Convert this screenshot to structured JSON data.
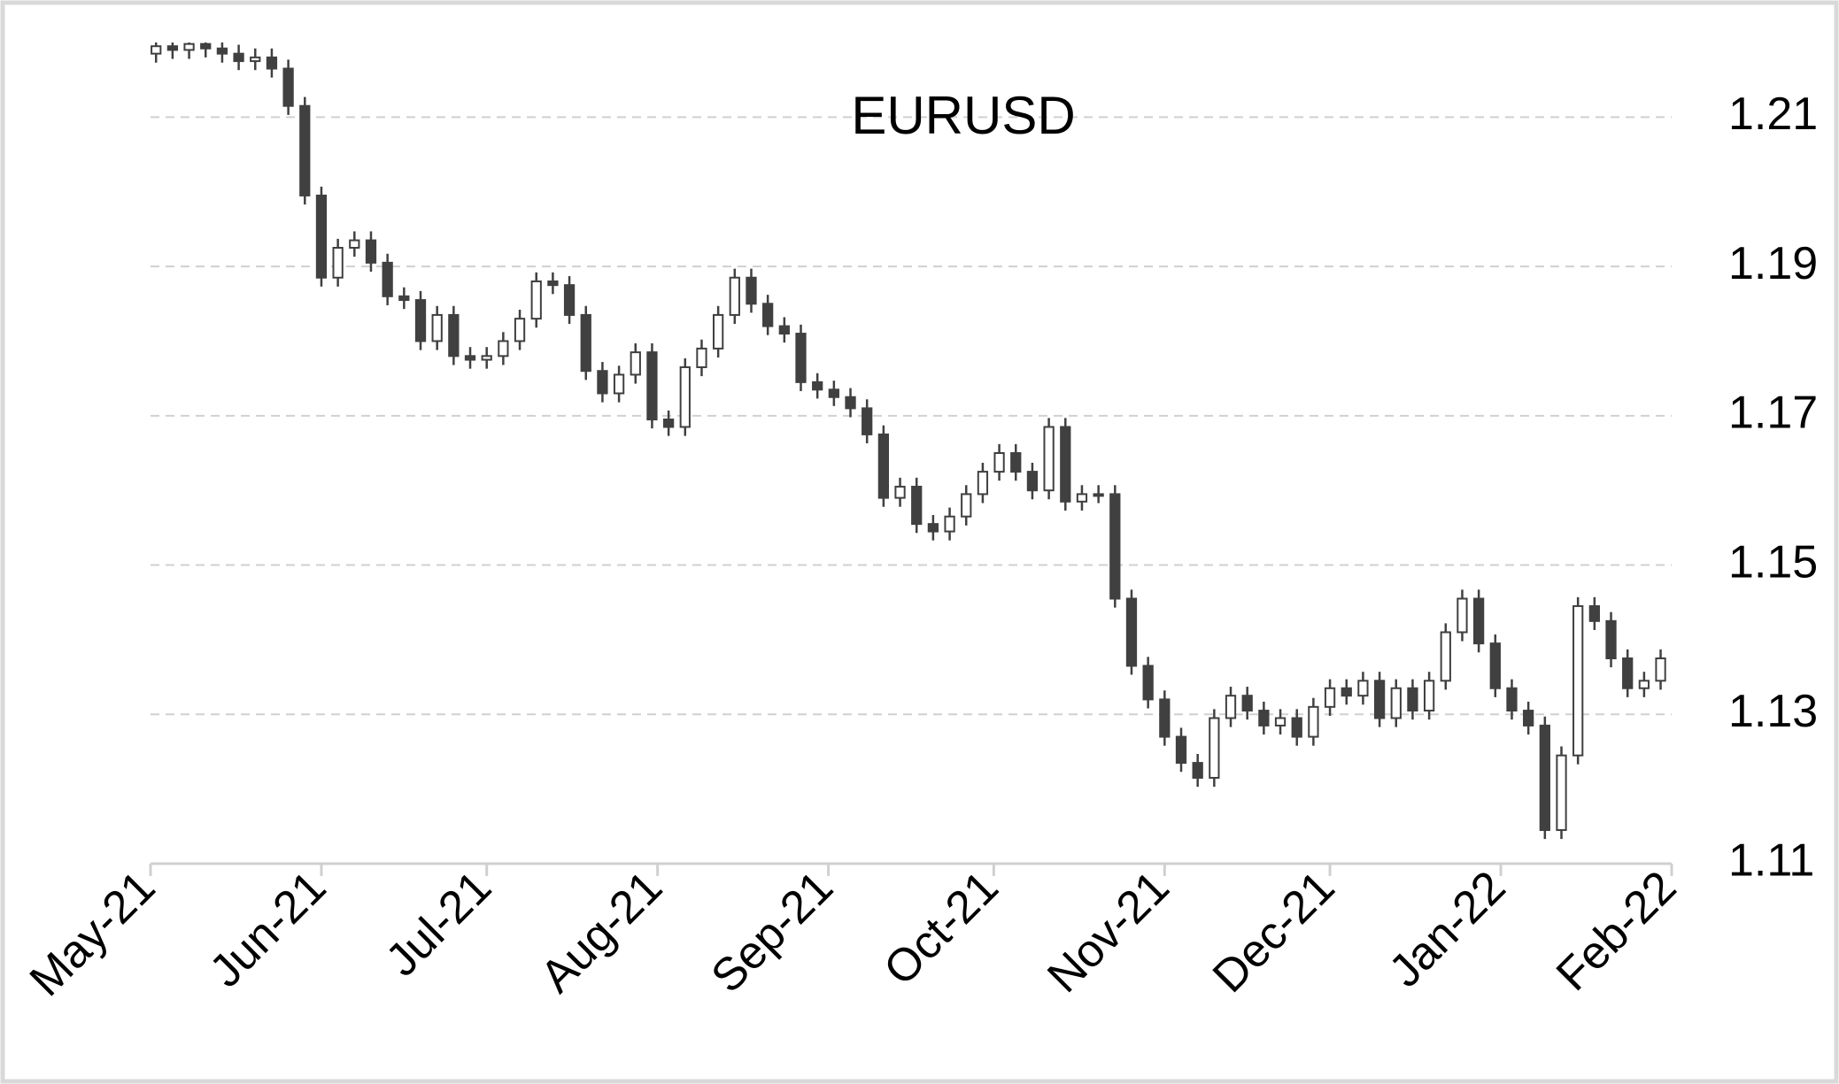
{
  "chart_data": {
    "type": "candlestick",
    "title": "EURUSD",
    "xlim": [
      0,
      276
    ],
    "xticks": [
      {
        "value": 0,
        "label": "May-21"
      },
      {
        "value": 31,
        "label": "Jun-21"
      },
      {
        "value": 61,
        "label": "Jul-21"
      },
      {
        "value": 92,
        "label": "Aug-21"
      },
      {
        "value": 123,
        "label": "Sep-21"
      },
      {
        "value": 153,
        "label": "Oct-21"
      },
      {
        "value": 184,
        "label": "Nov-21"
      },
      {
        "value": 214,
        "label": "Dec-21"
      },
      {
        "value": 245,
        "label": "Jan-22"
      },
      {
        "value": 276,
        "label": "Feb-22"
      }
    ],
    "ylim": [
      1.11,
      1.22
    ],
    "yticks": [
      1.11,
      1.13,
      1.15,
      1.17,
      1.19,
      1.21
    ],
    "grid": true,
    "up_color": "#ffffff",
    "down_color": "#404040",
    "x": [
      1,
      4,
      7,
      10,
      13,
      16,
      19,
      22,
      25,
      28,
      31,
      34,
      37,
      40,
      43,
      46,
      49,
      52,
      55,
      58,
      61,
      64,
      67,
      70,
      73,
      76,
      79,
      82,
      85,
      88,
      91,
      94,
      97,
      100,
      103,
      106,
      109,
      112,
      115,
      118,
      121,
      124,
      127,
      130,
      133,
      136,
      139,
      142,
      145,
      148,
      151,
      154,
      157,
      160,
      163,
      166,
      169,
      172,
      175,
      178,
      181,
      184,
      187,
      190,
      193,
      196,
      199,
      202,
      205,
      208,
      211,
      214,
      217,
      220,
      223,
      226,
      229,
      232,
      235,
      238,
      241,
      244,
      247,
      250,
      253,
      256,
      259,
      262,
      265,
      268,
      271,
      274
    ],
    "open": [
      1.2185,
      1.2195,
      1.219,
      1.2198,
      1.2192,
      1.2185,
      1.2175,
      1.218,
      1.2165,
      1.2115,
      1.1995,
      1.1885,
      1.1925,
      1.1935,
      1.1905,
      1.186,
      1.1855,
      1.18,
      1.1835,
      1.178,
      1.1775,
      1.178,
      1.18,
      1.183,
      1.188,
      1.1875,
      1.1835,
      1.176,
      1.173,
      1.1755,
      1.1785,
      1.1695,
      1.1685,
      1.1765,
      1.179,
      1.1835,
      1.1885,
      1.185,
      1.182,
      1.181,
      1.1745,
      1.1735,
      1.1725,
      1.171,
      1.1675,
      1.159,
      1.1605,
      1.1555,
      1.1545,
      1.1565,
      1.1595,
      1.1625,
      1.165,
      1.1625,
      1.16,
      1.1685,
      1.1585,
      1.1595,
      1.1595,
      1.1455,
      1.1365,
      1.132,
      1.127,
      1.1235,
      1.1215,
      1.1295,
      1.1325,
      1.1305,
      1.1285,
      1.1295,
      1.127,
      1.131,
      1.1335,
      1.1325,
      1.1345,
      1.1295,
      1.1335,
      1.1305,
      1.1345,
      1.141,
      1.1455,
      1.1395,
      1.1335,
      1.1305,
      1.1285,
      1.1145,
      1.1245,
      1.1445,
      1.1425,
      1.1375,
      1.1335,
      1.1345
    ],
    "high": [
      1.2207,
      1.2207,
      1.221,
      1.221,
      1.2204,
      1.2197,
      1.2192,
      1.2192,
      1.2177,
      1.2127,
      1.2007,
      1.1937,
      1.1947,
      1.1947,
      1.1917,
      1.1872,
      1.1867,
      1.1847,
      1.1847,
      1.1792,
      1.1792,
      1.1812,
      1.1842,
      1.1892,
      1.1892,
      1.1887,
      1.1847,
      1.1772,
      1.1767,
      1.1797,
      1.1797,
      1.1707,
      1.1777,
      1.1802,
      1.1847,
      1.1897,
      1.1897,
      1.1862,
      1.1832,
      1.1822,
      1.1757,
      1.1747,
      1.1737,
      1.1722,
      1.1687,
      1.1617,
      1.1617,
      1.1567,
      1.1577,
      1.1607,
      1.1637,
      1.1662,
      1.1662,
      1.1637,
      1.1697,
      1.1697,
      1.1607,
      1.1607,
      1.1607,
      1.1467,
      1.1377,
      1.1332,
      1.1282,
      1.1247,
      1.1307,
      1.1337,
      1.1337,
      1.1317,
      1.1307,
      1.1307,
      1.1322,
      1.1347,
      1.1347,
      1.1357,
      1.1357,
      1.1347,
      1.1347,
      1.1357,
      1.1422,
      1.1467,
      1.1467,
      1.1407,
      1.1347,
      1.1317,
      1.1297,
      1.1257,
      1.1457,
      1.1457,
      1.1437,
      1.1387,
      1.1357,
      1.1387
    ],
    "low": [
      1.2173,
      1.2178,
      1.2178,
      1.218,
      1.2173,
      1.2163,
      1.2163,
      1.2153,
      1.2103,
      1.1983,
      1.1873,
      1.1873,
      1.1913,
      1.1893,
      1.1848,
      1.1843,
      1.1788,
      1.1788,
      1.1768,
      1.1763,
      1.1763,
      1.1768,
      1.1788,
      1.1818,
      1.1863,
      1.1823,
      1.1748,
      1.1718,
      1.1718,
      1.1743,
      1.1683,
      1.1673,
      1.1673,
      1.1753,
      1.1778,
      1.1823,
      1.1838,
      1.1808,
      1.1798,
      1.1733,
      1.1723,
      1.1713,
      1.1698,
      1.1663,
      1.1578,
      1.1578,
      1.1543,
      1.1533,
      1.1533,
      1.1553,
      1.1583,
      1.1613,
      1.1613,
      1.1588,
      1.1588,
      1.1573,
      1.1573,
      1.1583,
      1.1443,
      1.1353,
      1.1308,
      1.1258,
      1.1223,
      1.1203,
      1.1203,
      1.1283,
      1.1293,
      1.1273,
      1.1273,
      1.1258,
      1.1258,
      1.1298,
      1.1313,
      1.1313,
      1.1283,
      1.1283,
      1.1293,
      1.1293,
      1.1333,
      1.1398,
      1.1383,
      1.1323,
      1.1293,
      1.1273,
      1.1133,
      1.1133,
      1.1233,
      1.1413,
      1.1363,
      1.1323,
      1.1323,
      1.1333
    ],
    "close": [
      1.2195,
      1.219,
      1.2198,
      1.2192,
      1.2185,
      1.2175,
      1.218,
      1.2165,
      1.2115,
      1.1995,
      1.1885,
      1.1925,
      1.1935,
      1.1905,
      1.186,
      1.1855,
      1.18,
      1.1835,
      1.178,
      1.1775,
      1.178,
      1.18,
      1.183,
      1.188,
      1.1875,
      1.1835,
      1.176,
      1.173,
      1.1755,
      1.1785,
      1.1695,
      1.1685,
      1.1765,
      1.179,
      1.1835,
      1.1885,
      1.185,
      1.182,
      1.181,
      1.1745,
      1.1735,
      1.1725,
      1.171,
      1.1675,
      1.159,
      1.1605,
      1.1555,
      1.1545,
      1.1565,
      1.1595,
      1.1625,
      1.165,
      1.1625,
      1.16,
      1.1685,
      1.1585,
      1.1595,
      1.1595,
      1.1455,
      1.1365,
      1.132,
      1.127,
      1.1235,
      1.1215,
      1.1295,
      1.1325,
      1.1305,
      1.1285,
      1.1295,
      1.127,
      1.131,
      1.1335,
      1.1325,
      1.1345,
      1.1295,
      1.1335,
      1.1305,
      1.1345,
      1.141,
      1.1455,
      1.1395,
      1.1335,
      1.1305,
      1.1285,
      1.1145,
      1.1245,
      1.1445,
      1.1425,
      1.1375,
      1.1335,
      1.1345,
      1.1375
    ]
  }
}
